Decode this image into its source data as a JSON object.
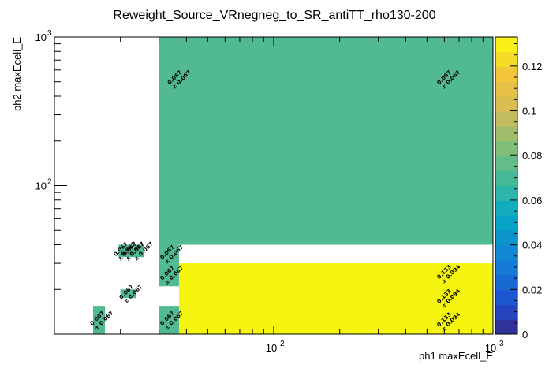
{
  "chart_data": {
    "type": "heatmap",
    "title": "Reweight_Source_VRnegneg_to_SR_antiTT_rho130-200",
    "xlabel": "ph1 maxEcell_E",
    "ylabel": "ph2 maxEcell_E",
    "xscale": "log",
    "yscale": "log",
    "xlim": [
      10,
      1000
    ],
    "ylim": [
      10,
      1000
    ],
    "x_ticks": [
      {
        "value": 100,
        "base": "10",
        "exp": "2"
      },
      {
        "value": 1000,
        "base": "10",
        "exp": "3"
      }
    ],
    "y_ticks": [
      {
        "value": 100,
        "base": "10",
        "exp": "2"
      },
      {
        "value": 1000,
        "base": "10",
        "exp": "3"
      }
    ],
    "colorbar": {
      "min": 0,
      "max": 0.133,
      "ticks": [
        "0",
        "0.02",
        "0.04",
        "0.06",
        "0.08",
        "0.1",
        "0.12"
      ],
      "tick_values": [
        0,
        0.02,
        0.04,
        0.06,
        0.08,
        0.1,
        0.12
      ]
    },
    "cells": [
      {
        "x0": 15.0,
        "x1": 17.0,
        "y0": 10.0,
        "y1": 15.5,
        "value": 0.067,
        "label": "0.067",
        "error": "± 0.067"
      },
      {
        "x0": 20.0,
        "x1": 23.5,
        "y0": 17.5,
        "y1": 20.0,
        "value": 0.067,
        "label": "0.067",
        "error": "± 0.067"
      },
      {
        "x0": 19.6,
        "x1": 21.3,
        "y0": 33.0,
        "y1": 40.0,
        "value": 0.067,
        "label": "0.067",
        "error": "± 0.067"
      },
      {
        "x0": 21.3,
        "x1": 23.0,
        "y0": 33.0,
        "y1": 40.0,
        "value": 0.067,
        "label": "0.067",
        "error": "± 0.067"
      },
      {
        "x0": 23.0,
        "x1": 25.5,
        "y0": 33.0,
        "y1": 40.0,
        "value": 0.067,
        "label": "0.067",
        "error": "± 0.067"
      },
      {
        "x0": 30.0,
        "x1": 1000.0,
        "y0": 40.0,
        "y1": 1000.0,
        "value": 0.067,
        "label": "0.067",
        "error": "± 0.067",
        "label_x": [
          36.0,
          610.0
        ],
        "label_y": 520.0
      },
      {
        "x0": 30.0,
        "x1": 37.0,
        "y0": 30.0,
        "y1": 40.0,
        "value": 0.067,
        "label": "0.067",
        "error": "± 0.067"
      },
      {
        "x0": 30.0,
        "x1": 37.0,
        "y0": 21.0,
        "y1": 30.0,
        "value": 0.067,
        "label": "0.067",
        "error": "± 0.067"
      },
      {
        "x0": 30.0,
        "x1": 37.0,
        "y0": 10.0,
        "y1": 15.5,
        "value": 0.067,
        "label": "0.067",
        "error": "± 0.067"
      },
      {
        "x0": 37.0,
        "x1": 1000.0,
        "y0": 10.0,
        "y1": 30.0,
        "value": 0.133,
        "label": "0.133",
        "error": "± 0.094",
        "label_x": [
          610.0
        ],
        "label_y_list": [
          25.5,
          17.5,
          12.2
        ]
      }
    ]
  }
}
